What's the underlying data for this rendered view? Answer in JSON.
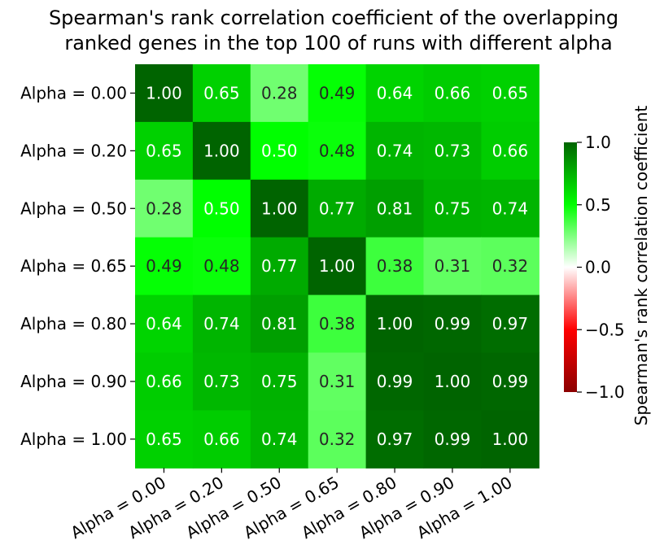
{
  "chart_data": {
    "type": "heatmap",
    "title_lines": [
      "Spearman's rank correlation coefficient of the overlapping",
      "ranked genes in the top 100 of runs with different alpha"
    ],
    "row_labels": [
      "Alpha = 0.00",
      "Alpha = 0.20",
      "Alpha = 0.50",
      "Alpha = 0.65",
      "Alpha = 0.80",
      "Alpha = 0.90",
      "Alpha = 1.00"
    ],
    "col_labels": [
      "Alpha = 0.00",
      "Alpha = 0.20",
      "Alpha = 0.50",
      "Alpha = 0.65",
      "Alpha = 0.80",
      "Alpha = 0.90",
      "Alpha = 1.00"
    ],
    "values": [
      [
        1.0,
        0.65,
        0.28,
        0.49,
        0.64,
        0.66,
        0.65
      ],
      [
        0.65,
        1.0,
        0.5,
        0.48,
        0.74,
        0.73,
        0.66
      ],
      [
        0.28,
        0.5,
        1.0,
        0.77,
        0.81,
        0.75,
        0.74
      ],
      [
        0.49,
        0.48,
        0.77,
        1.0,
        0.38,
        0.31,
        0.32
      ],
      [
        0.64,
        0.74,
        0.81,
        0.38,
        1.0,
        0.99,
        0.97
      ],
      [
        0.66,
        0.73,
        0.75,
        0.31,
        0.99,
        1.0,
        0.99
      ],
      [
        0.65,
        0.66,
        0.74,
        0.32,
        0.97,
        0.99,
        1.0
      ]
    ],
    "value_format": "2 decimals",
    "colorbar": {
      "label": "Spearman's rank correlation coefficient",
      "vmin": -1.0,
      "vmax": 1.0,
      "ticks": [
        1.0,
        0.5,
        0.0,
        -0.5,
        -1.0
      ],
      "tick_labels": [
        "1.0",
        "0.5",
        "0.0",
        "−0.5",
        "−1.0"
      ],
      "colors": [
        "#8b0000",
        "#ff0000",
        "#ffffff",
        "#00ff00",
        "#006400"
      ]
    },
    "grid": false
  }
}
